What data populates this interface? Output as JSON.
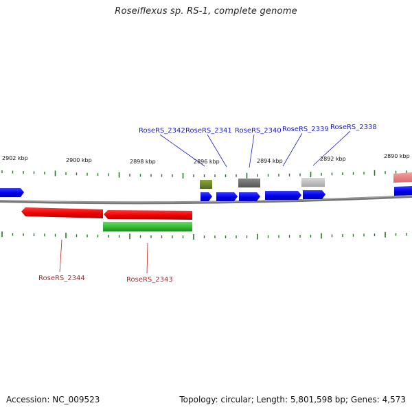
{
  "title": "Roseiflexus sp. RS-1, complete genome",
  "footer": {
    "accession": "Accession: NC_009523",
    "summary": "Topology: circular; Length: 5,801,598 bp; Genes: 4,573"
  },
  "colors": {
    "forward_gene": "#0000ee",
    "reverse_gene": "#ee0000",
    "rna_feature": "#33bb33",
    "tick": "#227722",
    "backbone": "#777777",
    "leader_top": "#1a1acc",
    "leader_bottom": "#cc1a1a"
  },
  "axis_labels": [
    "2902 kbp",
    "2900 kbp",
    "2898 kbp",
    "2896 kbp",
    "2894 kbp",
    "2892 kbp",
    "2890 kbp"
  ],
  "top_gene_labels": [
    "RoseRS_2342",
    "RoseRS_2341",
    "RoseRS_2340",
    "RoseRS_2339",
    "RoseRS_2338"
  ],
  "bottom_gene_labels": [
    "RoseRS_2344",
    "RoseRS_2343"
  ]
}
